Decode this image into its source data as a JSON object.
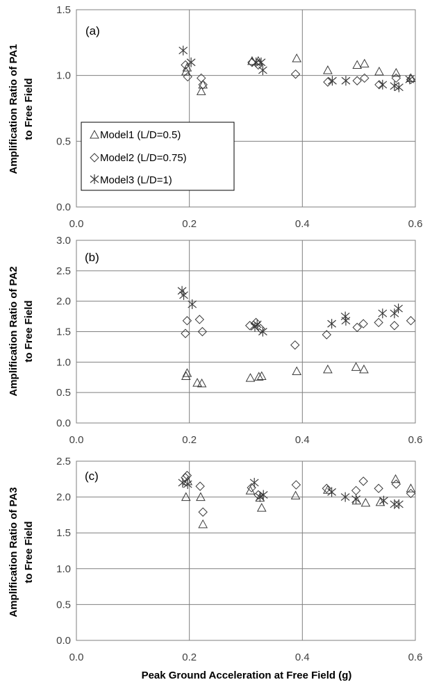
{
  "chart_data": [
    {
      "type": "scatter",
      "panel_label": "(a)",
      "ylabel_lines": [
        "Amplification Ratio of PA1",
        "to Free Field"
      ],
      "xlim": [
        0,
        0.6
      ],
      "ylim": [
        0,
        1.5
      ],
      "xticks": [
        "0.0",
        "0.2",
        "0.4",
        "0.6"
      ],
      "yticks": [
        "0.0",
        "0.5",
        "1.0",
        "1.5"
      ],
      "grid": true,
      "legend": {
        "position": "lower-left",
        "entries": [
          {
            "marker": "triangle",
            "label": "Model1 (L/D=0.5)"
          },
          {
            "marker": "diamond",
            "label": "Model2 (L/D=0.75)"
          },
          {
            "marker": "asterisk",
            "label": "Model3 (L/D=1)"
          }
        ]
      },
      "series": [
        {
          "name": "Model1 (L/D=0.5)",
          "marker": "triangle",
          "x": [
            0.194,
            0.196,
            0.221,
            0.224,
            0.311,
            0.322,
            0.39,
            0.445,
            0.497,
            0.51,
            0.536,
            0.566,
            0.592
          ],
          "y": [
            1.03,
            1.06,
            0.88,
            0.93,
            1.11,
            1.11,
            1.13,
            1.04,
            1.08,
            1.09,
            1.03,
            1.02,
            0.98
          ]
        },
        {
          "name": "Model2 (L/D=0.75)",
          "marker": "diamond",
          "x": [
            0.193,
            0.197,
            0.221,
            0.224,
            0.311,
            0.322,
            0.388,
            0.445,
            0.497,
            0.51,
            0.536,
            0.566,
            0.592
          ],
          "y": [
            1.08,
            0.99,
            0.98,
            0.93,
            1.1,
            1.08,
            1.01,
            0.95,
            0.96,
            0.98,
            0.93,
            0.98,
            0.97
          ]
        },
        {
          "name": "Model3 (L/D=1)",
          "marker": "asterisk",
          "x": [
            0.189,
            0.203,
            0.318,
            0.327,
            0.33,
            0.453,
            0.477,
            0.542,
            0.563,
            0.571,
            0.59
          ],
          "y": [
            1.19,
            1.1,
            1.1,
            1.1,
            1.04,
            0.96,
            0.96,
            0.93,
            0.92,
            0.91,
            0.97
          ]
        }
      ]
    },
    {
      "type": "scatter",
      "panel_label": "(b)",
      "ylabel_lines": [
        "Amplification Ratio of PA2",
        "to Free Field"
      ],
      "xlim": [
        0,
        0.6
      ],
      "ylim": [
        0,
        3.0
      ],
      "xticks": [
        "0.0",
        "0.2",
        "0.4",
        "0.6"
      ],
      "yticks": [
        "0.0",
        "0.5",
        "1.0",
        "1.5",
        "2.0",
        "2.5",
        "3.0"
      ],
      "grid": true,
      "series": [
        {
          "name": "Model1 (L/D=0.5)",
          "marker": "triangle",
          "x": [
            0.194,
            0.196,
            0.214,
            0.222,
            0.308,
            0.323,
            0.328,
            0.39,
            0.445,
            0.495,
            0.509
          ],
          "y": [
            0.77,
            0.82,
            0.66,
            0.65,
            0.74,
            0.76,
            0.77,
            0.85,
            0.88,
            0.92,
            0.88
          ]
        },
        {
          "name": "Model2 (L/D=0.75)",
          "marker": "diamond",
          "x": [
            0.193,
            0.196,
            0.218,
            0.223,
            0.307,
            0.318,
            0.326,
            0.387,
            0.443,
            0.497,
            0.508,
            0.535,
            0.563,
            0.592
          ],
          "y": [
            1.47,
            1.68,
            1.7,
            1.5,
            1.6,
            1.65,
            1.55,
            1.28,
            1.45,
            1.57,
            1.63,
            1.65,
            1.6,
            1.68
          ]
        },
        {
          "name": "Model3 (L/D=1)",
          "marker": "asterisk",
          "x": [
            0.187,
            0.19,
            0.205,
            0.316,
            0.32,
            0.33,
            0.452,
            0.476,
            0.477,
            0.542,
            0.563,
            0.57
          ],
          "y": [
            2.17,
            2.1,
            1.95,
            1.58,
            1.62,
            1.5,
            1.63,
            1.75,
            1.68,
            1.8,
            1.8,
            1.88
          ]
        }
      ]
    },
    {
      "type": "scatter",
      "panel_label": "(c)",
      "ylabel_lines": [
        "Amplification Ratio of PA3",
        "to Free Field"
      ],
      "xlabel": "Peak Ground Acceleration at Free Field (g)",
      "xlim": [
        0,
        0.6
      ],
      "ylim": [
        0,
        2.5
      ],
      "xticks": [
        "0.0",
        "0.2",
        "0.4",
        "0.6"
      ],
      "yticks": [
        "0.0",
        "0.5",
        "1.0",
        "1.5",
        "2.0",
        "2.5"
      ],
      "grid": true,
      "series": [
        {
          "name": "Model1 (L/D=0.5)",
          "marker": "triangle",
          "x": [
            0.194,
            0.197,
            0.22,
            0.224,
            0.308,
            0.325,
            0.328,
            0.388,
            0.445,
            0.496,
            0.512,
            0.538,
            0.565,
            0.592
          ],
          "y": [
            2.0,
            2.22,
            2.0,
            1.62,
            2.09,
            1.99,
            1.85,
            2.02,
            2.1,
            1.95,
            1.92,
            1.93,
            2.25,
            2.12
          ]
        },
        {
          "name": "Model2 (L/D=0.75)",
          "marker": "diamond",
          "x": [
            0.193,
            0.196,
            0.219,
            0.224,
            0.31,
            0.322,
            0.389,
            0.443,
            0.495,
            0.508,
            0.535,
            0.566,
            0.592
          ],
          "y": [
            2.27,
            2.3,
            2.15,
            1.79,
            2.13,
            2.03,
            2.17,
            2.12,
            2.09,
            2.22,
            2.12,
            2.18,
            2.05
          ]
        },
        {
          "name": "Model3 (L/D=1)",
          "marker": "asterisk",
          "x": [
            0.188,
            0.197,
            0.315,
            0.325,
            0.331,
            0.452,
            0.476,
            0.495,
            0.544,
            0.563,
            0.571
          ],
          "y": [
            2.2,
            2.18,
            2.2,
            2.0,
            2.03,
            2.07,
            2.0,
            1.97,
            1.95,
            1.9,
            1.9
          ]
        }
      ]
    }
  ]
}
